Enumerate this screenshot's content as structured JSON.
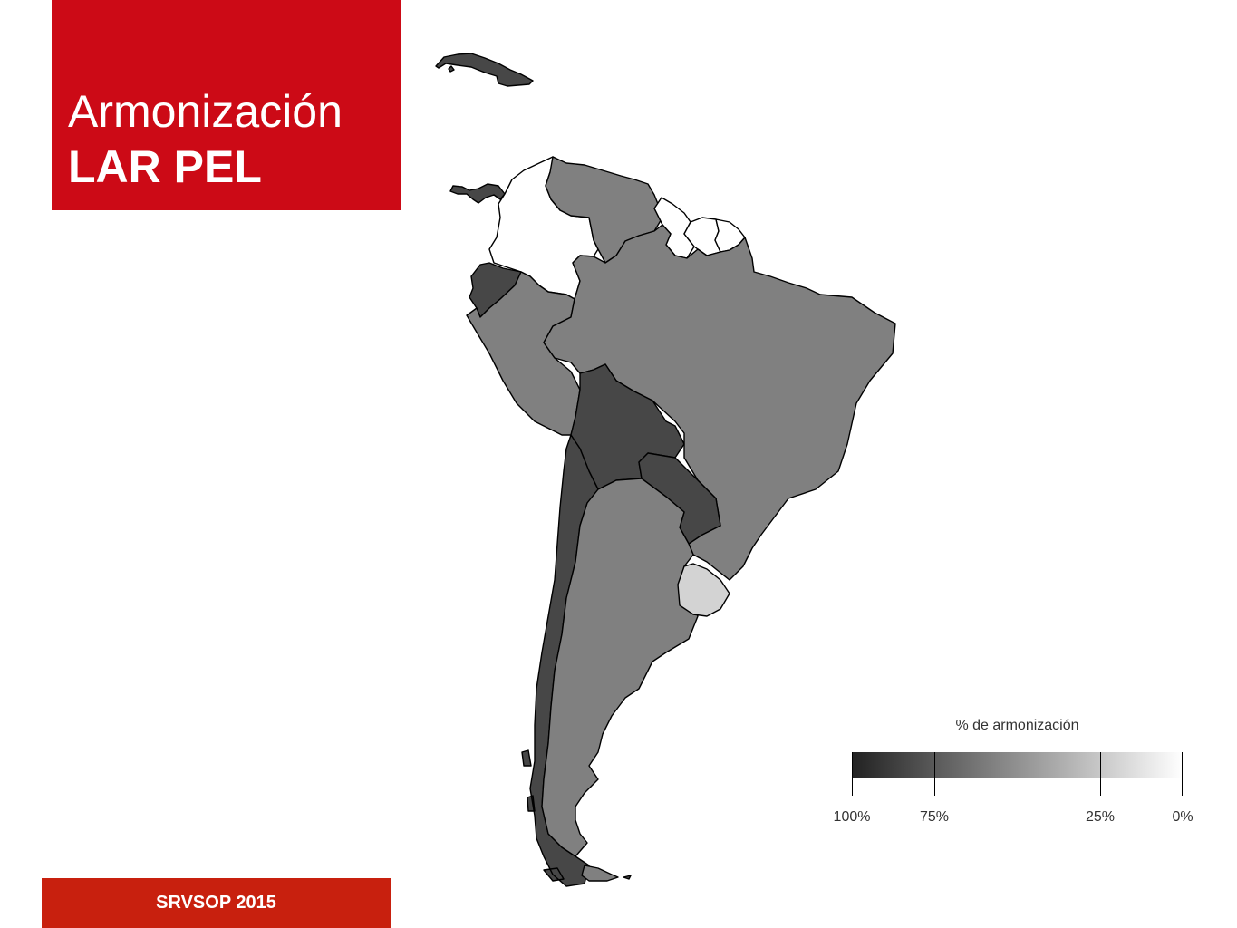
{
  "title": {
    "line1": "Armonización",
    "line2": "LAR PEL"
  },
  "footer": {
    "text": "SRVSOP 2015"
  },
  "legend": {
    "title": "% de armonización",
    "stops": [
      {
        "label": "100%",
        "value": 1.0
      },
      {
        "label": "75%",
        "value": 0.75
      },
      {
        "label": "25%",
        "value": 0.25
      },
      {
        "label": "0%",
        "value": 0.0
      }
    ],
    "color_dark": "#222222",
    "color_light": "#ffffff"
  },
  "map": {
    "countries": [
      {
        "name": "Cuba",
        "fill": "#474747"
      },
      {
        "name": "Panamá",
        "fill": "#474747"
      },
      {
        "name": "Colombia",
        "fill": "#ffffff"
      },
      {
        "name": "Venezuela",
        "fill": "#808080"
      },
      {
        "name": "Guyana",
        "fill": "#ffffff"
      },
      {
        "name": "Surinam",
        "fill": "#ffffff"
      },
      {
        "name": "Guayana Francesa",
        "fill": "#ffffff"
      },
      {
        "name": "Ecuador",
        "fill": "#474747"
      },
      {
        "name": "Perú",
        "fill": "#808080"
      },
      {
        "name": "Brasil",
        "fill": "#808080"
      },
      {
        "name": "Bolivia",
        "fill": "#474747"
      },
      {
        "name": "Paraguay",
        "fill": "#474747"
      },
      {
        "name": "Chile",
        "fill": "#474747"
      },
      {
        "name": "Argentina",
        "fill": "#808080"
      },
      {
        "name": "Uruguay",
        "fill": "#d3d3d3"
      },
      {
        "name": "Islas Malvinas",
        "fill": "#474747"
      }
    ]
  }
}
